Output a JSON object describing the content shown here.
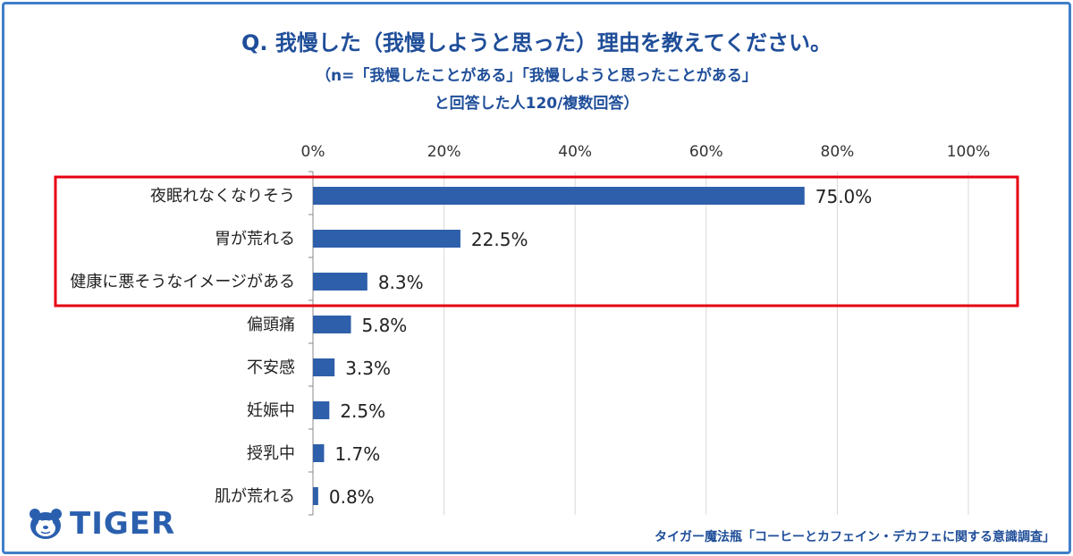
{
  "title": {
    "line1": "Q. 我慢した（我慢しようと思った）理由を教えてください。",
    "line2": "（n=「我慢したことがある」「我慢しようと思ったことがある」",
    "line3": "と回答した人120/複数回答）"
  },
  "brand": {
    "logo_text": "TIGER",
    "icon": "tiger-face-icon"
  },
  "source_note": "タイガー魔法瓶「コーヒーとカフェイン・デカフェに関する意識調査」",
  "colors": {
    "bar": "#2e5faa",
    "highlight": "#e60012",
    "title": "#1f4e99",
    "frame": "#3f7fc9"
  },
  "chart_data": {
    "type": "bar",
    "orientation": "horizontal",
    "categories": [
      "夜眠れなくなりそう",
      "胃が荒れる",
      "健康に悪そうなイメージがある",
      "偏頭痛",
      "不安感",
      "妊娠中",
      "授乳中",
      "肌が荒れる"
    ],
    "values": [
      75.0,
      22.5,
      8.3,
      5.8,
      3.3,
      2.5,
      1.7,
      0.8
    ],
    "value_labels": [
      "75.0%",
      "22.5%",
      "8.3%",
      "5.8%",
      "3.3%",
      "2.5%",
      "1.7%",
      "0.8%"
    ],
    "xlim": [
      0,
      100
    ],
    "xticks": [
      0,
      20,
      40,
      60,
      80,
      100
    ],
    "xtick_labels": [
      "0%",
      "20%",
      "40%",
      "60%",
      "80%",
      "100%"
    ],
    "grid": true,
    "axis_position": "top",
    "highlighted_categories": [
      "夜眠れなくなりそう",
      "胃が荒れる",
      "健康に悪そうなイメージがある"
    ]
  }
}
